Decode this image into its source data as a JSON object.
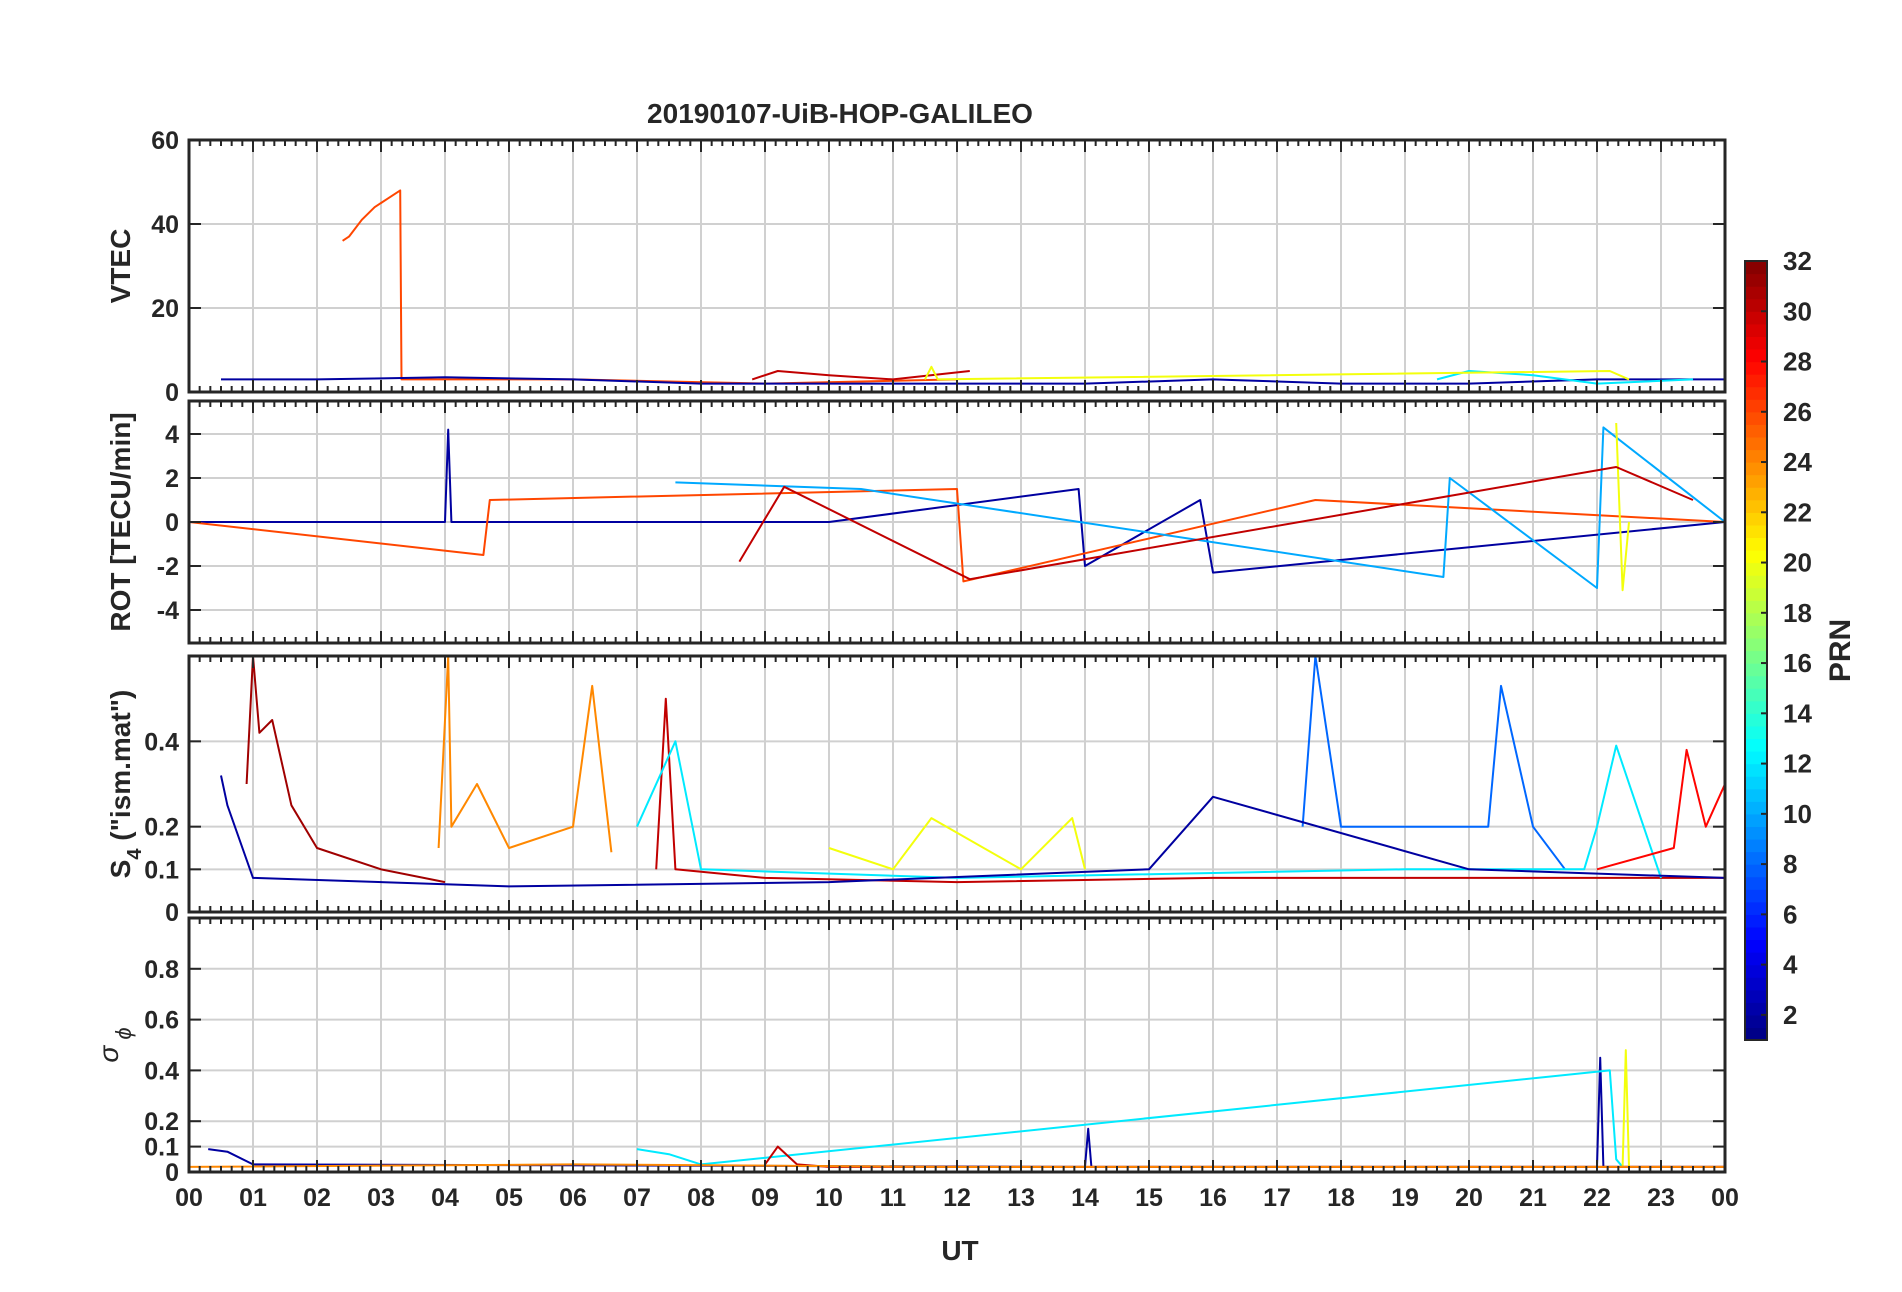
{
  "figure": {
    "title": "20190107-UiB-HOP-GALILEO",
    "xlabel": "UT",
    "x_tick_labels": [
      "00",
      "01",
      "02",
      "03",
      "04",
      "05",
      "06",
      "07",
      "08",
      "09",
      "10",
      "11",
      "12",
      "13",
      "14",
      "15",
      "16",
      "17",
      "18",
      "19",
      "20",
      "21",
      "22",
      "23",
      "00"
    ]
  },
  "colorbar": {
    "label": "PRN",
    "range": [
      1,
      32
    ],
    "ticks": [
      2,
      4,
      6,
      8,
      10,
      12,
      14,
      16,
      18,
      20,
      22,
      24,
      26,
      28,
      30,
      32
    ],
    "colormap": "jet"
  },
  "chart_data": [
    {
      "type": "line",
      "panel": "vtec",
      "ylabel": "VTEC",
      "ylim": [
        0,
        60
      ],
      "yticks": [
        0,
        20,
        40,
        60
      ],
      "xlim": [
        0,
        24
      ],
      "grid": true,
      "series": [
        {
          "prn": 26,
          "x": [
            2.4,
            2.5,
            2.7,
            2.9,
            3.1,
            3.3,
            3.32,
            3.4,
            6.0,
            9.0,
            12.0
          ],
          "y": [
            36,
            37,
            41,
            44,
            46,
            48,
            3,
            3,
            3,
            2,
            3
          ]
        },
        {
          "prn": 2,
          "x": [
            0.5,
            2.0,
            4.0,
            6.0,
            8.0,
            10.0,
            12.0,
            14.0,
            16.0,
            18.0,
            20.0,
            22.0,
            24.0
          ],
          "y": [
            3,
            3,
            3.5,
            3,
            2,
            2,
            2,
            2,
            3,
            2,
            2,
            3,
            3
          ]
        },
        {
          "prn": 30,
          "x": [
            8.8,
            9.2,
            10.0,
            11.0,
            12.2
          ],
          "y": [
            3,
            5,
            4,
            3,
            5
          ]
        },
        {
          "prn": 12,
          "x": [
            19.5,
            20.0,
            21.0,
            22.0,
            23.5
          ],
          "y": [
            3,
            5,
            4,
            2,
            3
          ]
        },
        {
          "prn": 20,
          "x": [
            11.5,
            11.6,
            11.7,
            22.2,
            22.5
          ],
          "y": [
            3,
            6,
            3,
            5,
            3
          ]
        }
      ]
    },
    {
      "type": "line",
      "panel": "rot",
      "ylabel": "ROT [TECU/min]",
      "ylim": [
        -5.5,
        5.5
      ],
      "yticks": [
        -4,
        -2,
        0,
        2,
        4
      ],
      "xlim": [
        0,
        24
      ],
      "grid": true,
      "series": [
        {
          "prn": 2,
          "x": [
            0,
            4.0,
            4.05,
            4.1,
            10.0,
            13.9,
            14.0,
            15.8,
            16.0,
            24.0
          ],
          "y": [
            0,
            0,
            4.2,
            0,
            0,
            1.5,
            -2,
            1.0,
            -2.3,
            0
          ]
        },
        {
          "prn": 26,
          "x": [
            0,
            4.6,
            4.7,
            12.0,
            12.1,
            17.6,
            24.0
          ],
          "y": [
            0,
            -1.5,
            1.0,
            1.5,
            -2.7,
            1.0,
            0
          ]
        },
        {
          "prn": 10,
          "x": [
            7.6,
            10.5,
            19.6,
            19.7,
            22.0,
            22.1,
            24.0
          ],
          "y": [
            1.8,
            1.5,
            -2.5,
            2.0,
            -3.0,
            4.3,
            0
          ]
        },
        {
          "prn": 20,
          "x": [
            22.3,
            22.4,
            22.5
          ],
          "y": [
            4.5,
            -3.1,
            0
          ]
        },
        {
          "prn": 30,
          "x": [
            8.6,
            9.3,
            12.2,
            22.3,
            23.5
          ],
          "y": [
            -1.8,
            1.6,
            -2.6,
            2.5,
            1.0
          ]
        }
      ]
    },
    {
      "type": "line",
      "panel": "s4",
      "ylabel": "S4 (\"ism.mat\")",
      "ylim": [
        0,
        0.6
      ],
      "yticks": [
        0,
        0.1,
        0.2,
        0.4
      ],
      "ytick_labels": [
        "0",
        "0.1",
        "0.2",
        "0.4"
      ],
      "xlim": [
        0,
        24
      ],
      "grid": true,
      "series": [
        {
          "prn": 31,
          "x": [
            0.9,
            1.0,
            1.1,
            1.3,
            1.6,
            2.0,
            3.0,
            4.0
          ],
          "y": [
            0.3,
            0.6,
            0.42,
            0.45,
            0.25,
            0.15,
            0.1,
            0.07
          ]
        },
        {
          "prn": 24,
          "x": [
            3.9,
            4.05,
            4.1,
            4.5,
            5.0,
            6.0,
            6.3,
            6.6
          ],
          "y": [
            0.15,
            0.6,
            0.2,
            0.3,
            0.15,
            0.2,
            0.53,
            0.14
          ]
        },
        {
          "prn": 30,
          "x": [
            7.3,
            7.45,
            7.6,
            9.0,
            12.0,
            16.0,
            24.0
          ],
          "y": [
            0.1,
            0.5,
            0.1,
            0.08,
            0.07,
            0.08,
            0.08
          ]
        },
        {
          "prn": 8,
          "x": [
            17.4,
            17.6,
            18.0,
            20.3,
            20.5,
            21.0,
            21.5
          ],
          "y": [
            0.2,
            0.6,
            0.2,
            0.2,
            0.53,
            0.2,
            0.1
          ]
        },
        {
          "prn": 12,
          "x": [
            7.0,
            7.6,
            8.0,
            12.0,
            19.0,
            21.8,
            22.0,
            22.3,
            23.0
          ],
          "y": [
            0.2,
            0.4,
            0.1,
            0.08,
            0.1,
            0.1,
            0.2,
            0.39,
            0.08
          ]
        },
        {
          "prn": 28,
          "x": [
            22.0,
            23.2,
            23.4,
            23.7,
            24.0
          ],
          "y": [
            0.1,
            0.15,
            0.38,
            0.2,
            0.3
          ]
        },
        {
          "prn": 2,
          "x": [
            0.5,
            0.6,
            1.0,
            5.0,
            10.0,
            15.0,
            16.0,
            20.0,
            24.0
          ],
          "y": [
            0.32,
            0.25,
            0.08,
            0.06,
            0.07,
            0.1,
            0.27,
            0.1,
            0.08
          ]
        },
        {
          "prn": 20,
          "x": [
            10.0,
            11.0,
            11.6,
            13.0,
            13.8,
            14.0
          ],
          "y": [
            0.15,
            0.1,
            0.22,
            0.1,
            0.22,
            0.1
          ]
        }
      ]
    },
    {
      "type": "line",
      "panel": "sigma_phi",
      "ylabel": "σ ϕ",
      "ylim": [
        0,
        1.0
      ],
      "yticks": [
        0,
        0.1,
        0.2,
        0.4,
        0.6,
        0.8
      ],
      "ytick_labels": [
        "0",
        "0.1",
        "0.2",
        "0.4",
        "0.6",
        "0.8"
      ],
      "xlim": [
        0,
        24
      ],
      "grid": true,
      "series": [
        {
          "prn": 2,
          "x": [
            0.3,
            0.6,
            1.0,
            14.0,
            14.05,
            14.1,
            22.0,
            22.05,
            22.1,
            24.0
          ],
          "y": [
            0.09,
            0.08,
            0.03,
            0.02,
            0.17,
            0.02,
            0.02,
            0.45,
            0.02,
            0.02
          ]
        },
        {
          "prn": 12,
          "x": [
            7.0,
            7.5,
            8.0,
            22.2,
            22.3,
            22.4
          ],
          "y": [
            0.09,
            0.07,
            0.03,
            0.4,
            0.05,
            0.02
          ]
        },
        {
          "prn": 20,
          "x": [
            22.4,
            22.45,
            22.5
          ],
          "y": [
            0.02,
            0.48,
            0.02
          ]
        },
        {
          "prn": 30,
          "x": [
            9.0,
            9.2,
            9.5,
            10.0,
            24.0
          ],
          "y": [
            0.03,
            0.1,
            0.03,
            0.02,
            0.02
          ]
        },
        {
          "prn": 24,
          "x": [
            0,
            6.0,
            12.0,
            18.0,
            24.0
          ],
          "y": [
            0.02,
            0.03,
            0.02,
            0.02,
            0.02
          ]
        }
      ]
    }
  ]
}
